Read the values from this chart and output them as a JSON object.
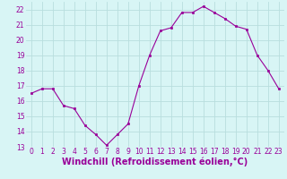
{
  "x": [
    0,
    1,
    2,
    3,
    4,
    5,
    6,
    7,
    8,
    9,
    10,
    11,
    12,
    13,
    14,
    15,
    16,
    17,
    18,
    19,
    20,
    21,
    22,
    23
  ],
  "y": [
    16.5,
    16.8,
    16.8,
    15.7,
    15.5,
    14.4,
    13.8,
    13.1,
    13.8,
    14.5,
    17.0,
    19.0,
    20.6,
    20.8,
    21.8,
    21.8,
    22.2,
    21.8,
    21.4,
    20.9,
    20.7,
    19.0,
    18.0,
    16.8
  ],
  "line_color": "#990099",
  "marker": "s",
  "marker_size": 2,
  "background_color": "#d8f5f5",
  "grid_color": "#b8dede",
  "xlabel": "Windchill (Refroidissement éolien,°C)",
  "xlabel_color": "#990099",
  "tick_color": "#990099",
  "ylim": [
    13,
    22.5
  ],
  "xlim": [
    -0.5,
    23.5
  ],
  "yticks": [
    13,
    14,
    15,
    16,
    17,
    18,
    19,
    20,
    21,
    22
  ],
  "xticks": [
    0,
    1,
    2,
    3,
    4,
    5,
    6,
    7,
    8,
    9,
    10,
    11,
    12,
    13,
    14,
    15,
    16,
    17,
    18,
    19,
    20,
    21,
    22,
    23
  ],
  "tick_fontsize": 5.5,
  "xlabel_fontsize": 7.0,
  "xlabel_fontweight": "bold"
}
